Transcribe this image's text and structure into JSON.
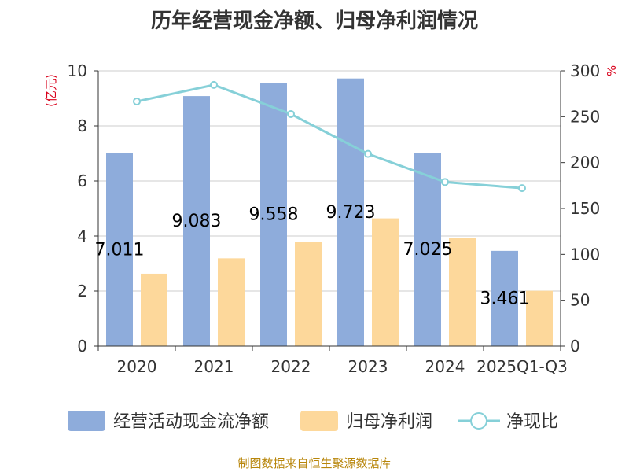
{
  "title": "历年经营现金净额、归母净利润情况",
  "source": "制图数据来自恒生聚源数据库",
  "chart_data": {
    "type": "bar",
    "categories": [
      "2020",
      "2021",
      "2022",
      "2023",
      "2024",
      "2025Q1-Q3"
    ],
    "series": [
      {
        "name": "经营活动现金流净额",
        "type": "bar",
        "axis": "left",
        "color": "#8eacdb",
        "values": [
          7.011,
          9.083,
          9.558,
          9.723,
          7.025,
          3.461
        ],
        "labels": [
          "7.011",
          "9.083",
          "9.558",
          "9.723",
          "7.025",
          "3.461"
        ]
      },
      {
        "name": "归母净利润",
        "type": "bar",
        "axis": "left",
        "color": "#fdd89b",
        "values": [
          2.63,
          3.19,
          3.78,
          4.64,
          3.93,
          2.01
        ]
      },
      {
        "name": "净现比",
        "type": "line",
        "axis": "right",
        "color": "#86d0d8",
        "values": [
          266.6,
          284.7,
          252.9,
          209.5,
          178.8,
          172.2
        ]
      }
    ],
    "y_left": {
      "label": "(亿元)",
      "min": 0,
      "max": 10,
      "ticks": [
        "0",
        "2",
        "4",
        "6",
        "8",
        "10"
      ]
    },
    "y_right": {
      "label": "%",
      "min": 0,
      "max": 300,
      "ticks": [
        "0",
        "50",
        "100",
        "150",
        "200",
        "250",
        "300"
      ]
    },
    "grid": true,
    "legend": "bottom"
  }
}
